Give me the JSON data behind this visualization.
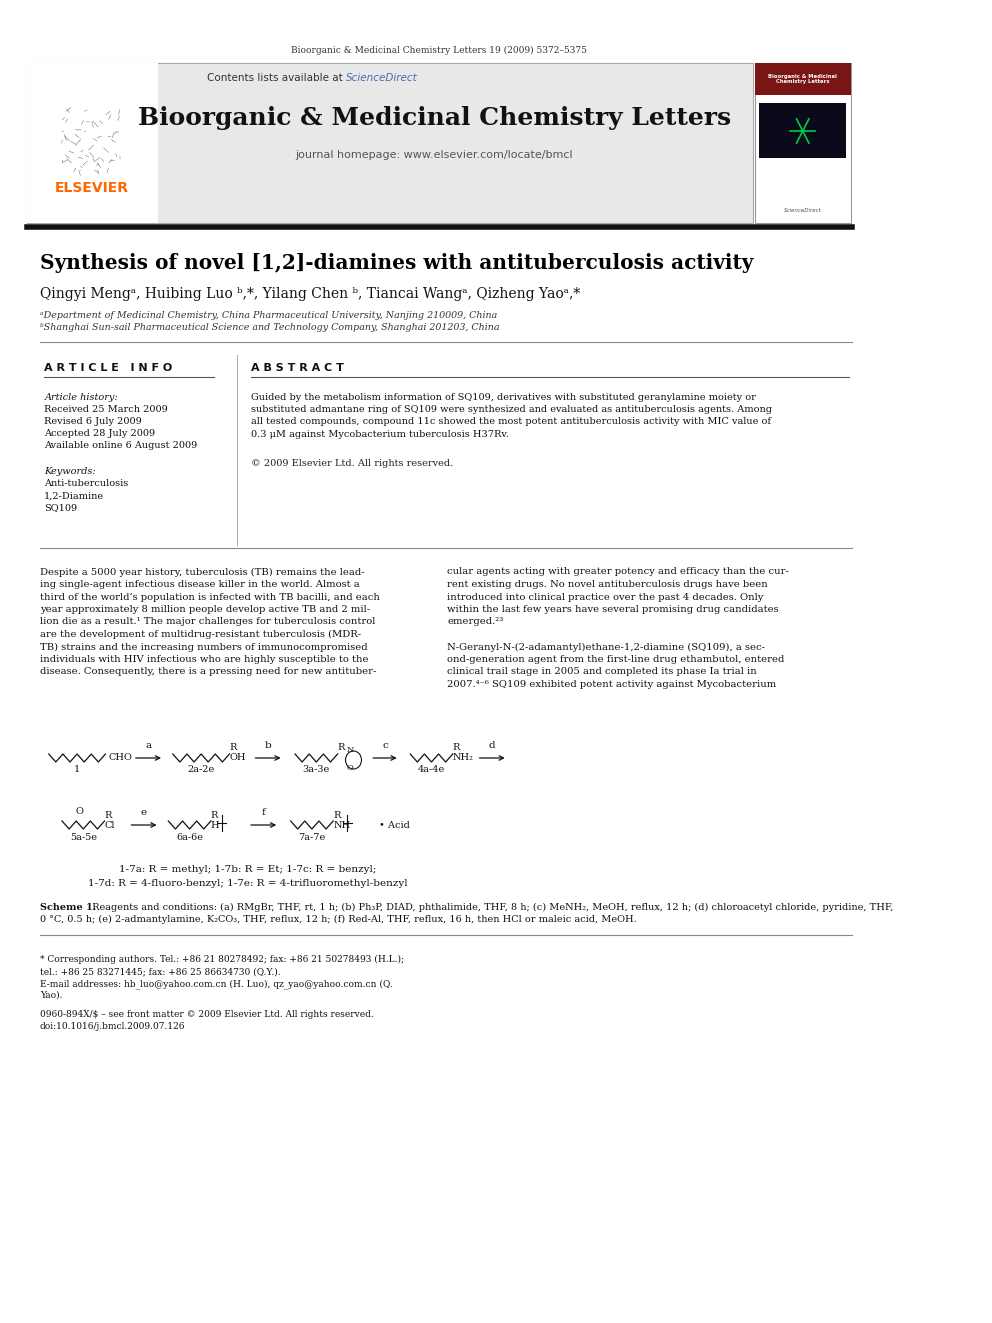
{
  "bg_color": "#ffffff",
  "top_journal_text": "Bioorganic & Medicinal Chemistry Letters 19 (2009) 5372–5375",
  "header_bg": "#e8e8e8",
  "header_journal_name": "Bioorganic & Medicinal Chemistry Letters",
  "header_contents": "Contents lists available at ScienceDirect",
  "header_homepage": "journal homepage: www.elsevier.com/locate/bmcl",
  "elsevier_color": "#FF6600",
  "science_direct_color": "#4a6ea8",
  "article_title": "Synthesis of novel [1,2]-diamines with antituberculosis activity",
  "authors": "Qingyi Mengᵃ, Huibing Luo ᵇ,*, Yilang Chen ᵇ, Tiancai Wangᵃ, Qizheng Yaoᵃ,*",
  "affil_a": "ᵃDepartment of Medicinal Chemistry, China Pharmaceutical University, Nanjing 210009, China",
  "affil_b": "ᵇShanghai Sun-sail Pharmaceutical Science and Technology Company, Shanghai 201203, China",
  "article_info_label": "A R T I C L E   I N F O",
  "abstract_label": "A B S T R A C T",
  "article_history_label": "Article history:",
  "received": "Received 25 March 2009",
  "revised": "Revised 6 July 2009",
  "accepted": "Accepted 28 July 2009",
  "available": "Available online 6 August 2009",
  "keywords_label": "Keywords:",
  "kw1": "Anti-tuberculosis",
  "kw2": "1,2-Diamine",
  "kw3": "SQ109",
  "abstract_text": "Guided by the metabolism information of SQ109, derivatives with substituted geranylamine moiety or\nsubstituted admantane ring of SQ109 were synthesized and evaluated as antituberculosis agents. Among\nall tested compounds, compound 11c showed the most potent antituberculosis activity with MIC value of\n0.3 μM against Mycobacterium tuberculosis H37Rv.\n\n© 2009 Elsevier Ltd. All rights reserved.",
  "body_col1": "Despite a 5000 year history, tuberculosis (TB) remains the lead-\ning single-agent infectious disease killer in the world. Almost a\nthird of the world’s population is infected with TB bacilli, and each\nyear approximately 8 million people develop active TB and 2 mil-\nlion die as a result.¹ The major challenges for tuberculosis control\nare the development of multidrug-resistant tuberculosis (MDR-\nTB) strains and the increasing numbers of immunocompromised\nindividuals with HIV infectious who are highly susceptible to the\ndisease. Consequently, there is a pressing need for new antituber-",
  "body_col2": "cular agents acting with greater potency and efficacy than the cur-\nrent existing drugs. No novel antituberculosis drugs have been\nintroduced into clinical practice over the past 4 decades. Only\nwithin the last few years have several promising drug candidates\nemerged.²³\n\nN-Geranyl-N-(2-adamantyl)ethane-1,2-diamine (SQ109), a sec-\nond-generation agent from the first-line drug ethambutol, entered\nclinical trail stage in 2005 and completed its phase Ia trial in\n2007.⁴⁻⁶ SQ109 exhibited potent activity against Mycobacterium",
  "scheme_caption_bold": "Scheme 1.",
  "scheme_caption_rest": " Reagents and conditions: (a) RMgBr, THF, rt, 1 h; (b) Ph₃P, DIAD, phthalimide, THF, 8 h; (c) MeNH₂, MeOH, reflux, 12 h; (d) chloroacetyl chloride, pyridine, THF,\n0 °C, 0.5 h; (e) 2-admantylamine, K₂CO₃, THF, reflux, 12 h; (f) Red-Al, THF, reflux, 16 h, then HCl or maleic acid, MeOH.",
  "scheme_legend": "1-7a: R = methyl; 1-7b: R = Et; 1-7c: R = benzyl;\n1-7d: R = 4-fluoro-benzyl; 1-7e: R = 4-trifluoromethyl-benzyl",
  "footnote_star": "* Corresponding authors. Tel.: +86 21 80278492; fax: +86 21 50278493 (H.L.);\ntel.: +86 25 83271445; fax: +86 25 86634730 (Q.Y.).\nE-mail addresses: hb_luo@yahoo.com.cn (H. Luo), qz_yao@yahoo.com.cn (Q.\nYao).",
  "footnote_issn": "0960-894X/$ – see front matter © 2009 Elsevier Ltd. All rights reserved.\ndoi:10.1016/j.bmcl.2009.07.126"
}
